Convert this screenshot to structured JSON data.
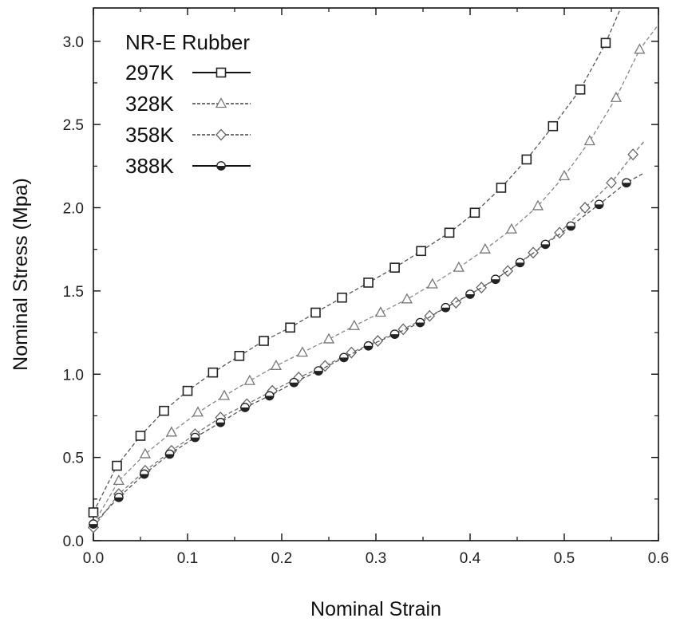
{
  "chart_data": {
    "type": "line",
    "title": "",
    "xlabel": "Nominal Strain",
    "ylabel": "Nominal Stress (Mpa)",
    "xlim": [
      0.0,
      0.6
    ],
    "ylim": [
      0.0,
      3.2
    ],
    "xticks": [
      "0.0",
      "0.1",
      "0.2",
      "0.3",
      "0.4",
      "0.5",
      "0.6"
    ],
    "yticks": [
      "0.0",
      "0.5",
      "1.0",
      "1.5",
      "2.0",
      "2.5",
      "3.0"
    ],
    "grid": false,
    "legend_title": "NR-E Rubber",
    "legend_position": "top-left",
    "series": [
      {
        "name": "297K",
        "marker": "square",
        "line": "solid",
        "x": [
          0.0,
          0.025,
          0.05,
          0.075,
          0.1,
          0.127,
          0.155,
          0.181,
          0.209,
          0.236,
          0.264,
          0.292,
          0.32,
          0.348,
          0.378,
          0.405,
          0.433,
          0.46,
          0.488,
          0.517,
          0.544
        ],
        "y": [
          0.17,
          0.45,
          0.63,
          0.78,
          0.9,
          1.01,
          1.11,
          1.2,
          1.28,
          1.37,
          1.46,
          1.55,
          1.64,
          1.74,
          1.85,
          1.97,
          2.12,
          2.29,
          2.49,
          2.71,
          2.99
        ],
        "curve_end": [
          0.56,
          3.2
        ]
      },
      {
        "name": "328K",
        "marker": "triangle",
        "line": "dashed",
        "x": [
          0.0,
          0.027,
          0.055,
          0.083,
          0.111,
          0.139,
          0.166,
          0.194,
          0.222,
          0.25,
          0.277,
          0.305,
          0.333,
          0.36,
          0.388,
          0.416,
          0.444,
          0.472,
          0.5,
          0.527,
          0.555,
          0.58
        ],
        "y": [
          0.1,
          0.36,
          0.52,
          0.65,
          0.77,
          0.87,
          0.96,
          1.05,
          1.13,
          1.21,
          1.29,
          1.37,
          1.45,
          1.54,
          1.64,
          1.75,
          1.87,
          2.01,
          2.19,
          2.4,
          2.66,
          2.95
        ],
        "curve_end": [
          0.6,
          3.1
        ]
      },
      {
        "name": "358K",
        "marker": "diamond",
        "line": "dashed",
        "x": [
          0.0,
          0.027,
          0.055,
          0.083,
          0.108,
          0.135,
          0.163,
          0.19,
          0.218,
          0.246,
          0.274,
          0.302,
          0.329,
          0.357,
          0.385,
          0.412,
          0.44,
          0.467,
          0.495,
          0.522,
          0.55,
          0.573
        ],
        "y": [
          0.08,
          0.28,
          0.42,
          0.54,
          0.64,
          0.74,
          0.82,
          0.9,
          0.98,
          1.05,
          1.13,
          1.2,
          1.27,
          1.35,
          1.43,
          1.52,
          1.62,
          1.73,
          1.85,
          2.0,
          2.15,
          2.32
        ],
        "curve_end": [
          0.585,
          2.4
        ]
      },
      {
        "name": "388K",
        "marker": "circle-half",
        "line": "solid",
        "x": [
          0.0,
          0.027,
          0.054,
          0.081,
          0.108,
          0.135,
          0.161,
          0.187,
          0.213,
          0.239,
          0.266,
          0.292,
          0.32,
          0.347,
          0.374,
          0.4,
          0.427,
          0.453,
          0.48,
          0.507,
          0.537,
          0.566
        ],
        "y": [
          0.1,
          0.26,
          0.4,
          0.52,
          0.62,
          0.71,
          0.8,
          0.87,
          0.95,
          1.02,
          1.1,
          1.17,
          1.24,
          1.31,
          1.4,
          1.48,
          1.57,
          1.67,
          1.78,
          1.89,
          2.02,
          2.15
        ],
        "curve_end": [
          0.585,
          2.21
        ]
      }
    ]
  }
}
